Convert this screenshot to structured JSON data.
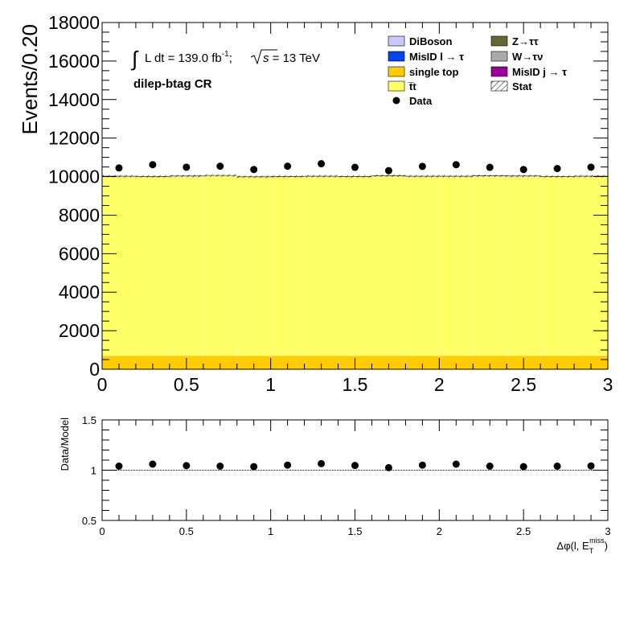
{
  "chart_data": [
    {
      "type": "bar",
      "panel": "main",
      "ylabel": "Events/0.20",
      "xlim": [
        0,
        3
      ],
      "ylim": [
        0,
        18000
      ],
      "x_ticks": [
        "0",
        "0.5",
        "1",
        "1.5",
        "2",
        "2.5",
        "3"
      ],
      "y_ticks": [
        "0",
        "2000",
        "4000",
        "6000",
        "8000",
        "10000",
        "12000",
        "14000",
        "16000",
        "18000"
      ],
      "bin_edges": [
        0,
        0.2,
        0.4,
        0.6,
        0.8,
        1.0,
        1.2,
        1.4,
        1.6,
        1.8,
        2.0,
        2.2,
        2.4,
        2.6,
        2.8,
        3.0
      ],
      "annotation": {
        "lumi_prefix": "L dt = 139.0 fb",
        "lumi_sup": "-1",
        "lumi_sep": ";",
        "energy_s": "s",
        "energy_value": " = 13 TeV",
        "region": "dilep-btag CR"
      },
      "legend": {
        "placement": "top-right",
        "entries": [
          {
            "label": "DiBoson",
            "color": "#c8c8ff",
            "kind": "box"
          },
          {
            "label": "Z→ττ",
            "color": "#666633",
            "kind": "box"
          },
          {
            "label": "MisID l → τ",
            "color": "#0044ee",
            "kind": "box"
          },
          {
            "label": "W→τν",
            "color": "#aaaaaa",
            "kind": "box"
          },
          {
            "label": "single top",
            "color": "#ffcc00",
            "kind": "box"
          },
          {
            "label": "MisID j → τ",
            "color": "#990099",
            "kind": "box"
          },
          {
            "label": "t̅t",
            "color": "#ffff66",
            "kind": "box"
          },
          {
            "label": "Stat",
            "color": "#000000",
            "kind": "hatch"
          },
          {
            "label": "Data",
            "color": "#000000",
            "kind": "marker"
          }
        ]
      },
      "series": [
        {
          "name": "single top",
          "color": "#ffcc00",
          "values": [
            700,
            700,
            700,
            700,
            690,
            700,
            700,
            700,
            700,
            690,
            700,
            700,
            700,
            690,
            700
          ]
        },
        {
          "name": "t̅t",
          "color": "#ffff66",
          "values": [
            9320,
            9310,
            9330,
            9360,
            9300,
            9310,
            9320,
            9310,
            9350,
            9330,
            9320,
            9340,
            9330,
            9310,
            9320
          ]
        },
        {
          "name": "Data",
          "color": "#000000",
          "values": [
            10450,
            10620,
            10490,
            10540,
            10370,
            10540,
            10670,
            10480,
            10310,
            10530,
            10620,
            10480,
            10370,
            10420,
            10490
          ]
        }
      ]
    },
    {
      "type": "scatter",
      "panel": "ratio",
      "ylabel": "Data/Model",
      "xlabel_main": "Δφ(l, E",
      "xlabel_sub": "T",
      "xlabel_sup": "miss",
      "xlabel_close": ")",
      "xlim": [
        0,
        3
      ],
      "ylim": [
        0.5,
        1.5
      ],
      "x_ticks": [
        "0",
        "0.5",
        "1",
        "1.5",
        "2",
        "2.5",
        "3"
      ],
      "y_ticks": [
        "0.5",
        "1",
        "1.5"
      ],
      "reference_line": 1,
      "x": [
        0.1,
        0.3,
        0.5,
        0.7,
        0.9,
        1.1,
        1.3,
        1.5,
        1.7,
        1.9,
        2.1,
        2.3,
        2.5,
        2.7,
        2.9
      ],
      "values": [
        1.04,
        1.06,
        1.045,
        1.04,
        1.035,
        1.05,
        1.065,
        1.047,
        1.025,
        1.05,
        1.06,
        1.04,
        1.035,
        1.04,
        1.042
      ]
    }
  ]
}
